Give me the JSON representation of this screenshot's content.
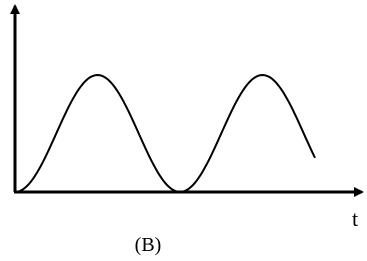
{
  "axis_label_x": "t",
  "caption": "(B)"
}
